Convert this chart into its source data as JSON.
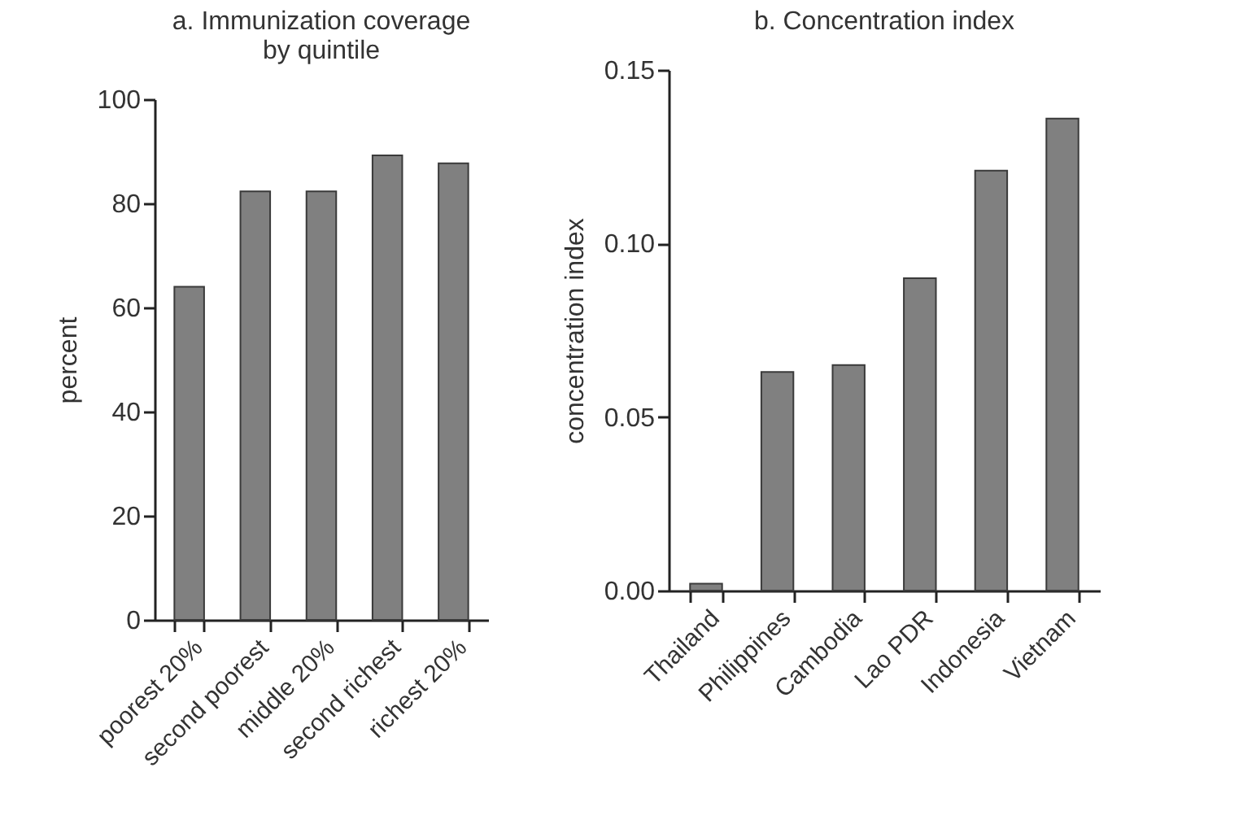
{
  "chart_data": [
    {
      "type": "bar",
      "title": "a. Immunization coverage\nby quintile",
      "ylabel": "percent",
      "categories": [
        "poorest 20%",
        "second poorest",
        "middle 20%",
        "second richest",
        "richest 20%"
      ],
      "values": [
        64,
        82.3,
        82.3,
        89.2,
        87.7
      ],
      "color": "#808080",
      "ylim": [
        0,
        100
      ],
      "yticks": [
        0,
        20,
        40,
        60,
        80,
        100
      ],
      "grid": false
    },
    {
      "type": "bar",
      "title": "b. Concentration index",
      "ylabel": "concentration index",
      "categories": [
        "Thailand",
        "Philippines",
        "Cambodia",
        "Lao PDR",
        "Indonesia",
        "Vietnam"
      ],
      "values": [
        0.002,
        0.063,
        0.065,
        0.09,
        0.121,
        0.136
      ],
      "color": "#808080",
      "ylim": [
        0,
        0.15
      ],
      "yticks": [
        {
          "value": 0,
          "label": "0.00"
        },
        {
          "value": 0.05,
          "label": "0.05"
        },
        {
          "value": 0.1,
          "label": "0.10"
        },
        {
          "value": 0.15,
          "label": "0.15"
        }
      ],
      "grid": false
    }
  ]
}
